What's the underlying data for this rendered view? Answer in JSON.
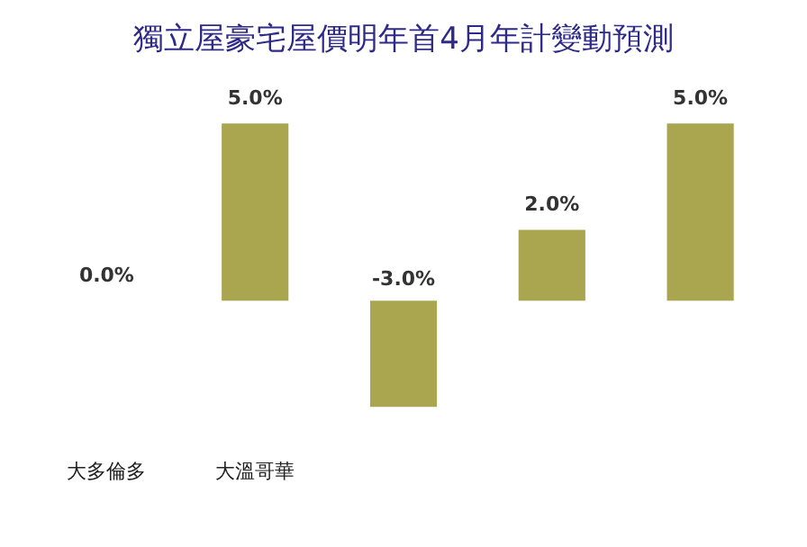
{
  "chart_data": {
    "type": "bar",
    "title": "獨立屋豪宅屋價明年首4月年計變動預測",
    "categories": [
      "大多倫多",
      "大溫哥華",
      null,
      null,
      null
    ],
    "values": [
      0,
      5,
      -3,
      2,
      5
    ],
    "value_labels": [
      "0.0%",
      "5.0%",
      "-3.0%",
      "2.0%",
      "5.0%"
    ],
    "color": "#a9a64f",
    "grid": false,
    "legend": false
  }
}
